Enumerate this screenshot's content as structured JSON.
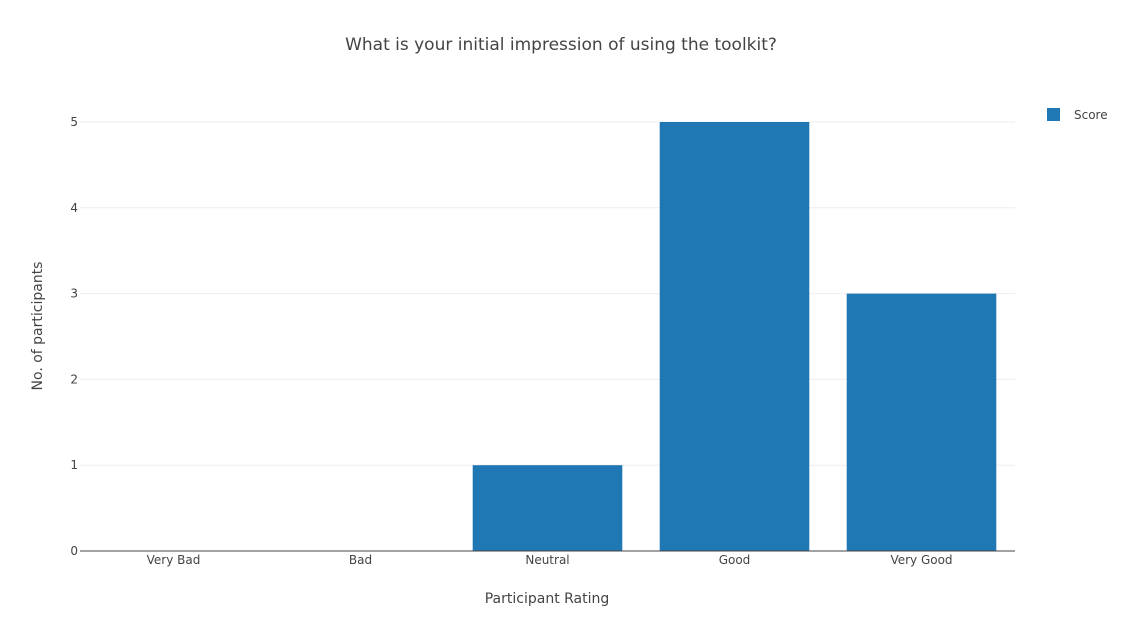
{
  "chart_data": {
    "type": "bar",
    "title": "What is your initial impression of using the toolkit?",
    "xlabel": "Participant Rating",
    "ylabel": "No. of participants",
    "categories": [
      "Very Bad",
      "Bad",
      "Neutral",
      "Good",
      "Very Good"
    ],
    "series": [
      {
        "name": "Score",
        "values": [
          0,
          0,
          1,
          5,
          3
        ],
        "color": "#1f77b4"
      }
    ],
    "ylim": [
      0,
      5
    ],
    "yticks": [
      0,
      1,
      2,
      3,
      4,
      5
    ],
    "grid": true,
    "legend": "top-right"
  }
}
